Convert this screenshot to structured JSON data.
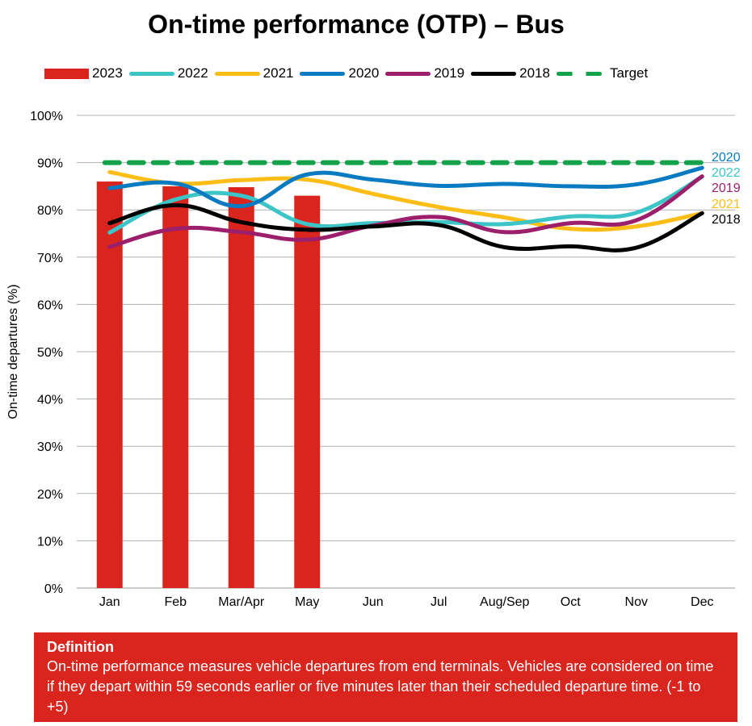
{
  "chart_data": {
    "type": "bar+line",
    "title": "On-time performance (OTP) – Bus",
    "xlabel": "",
    "ylabel": "On-time departures (%)",
    "ylim": [
      0,
      100
    ],
    "yticks": [
      "0%",
      "10%",
      "20%",
      "30%",
      "40%",
      "50%",
      "60%",
      "70%",
      "80%",
      "90%",
      "100%"
    ],
    "grid": true,
    "legend_position": "top",
    "categories": [
      "Jan",
      "Feb",
      "Mar/Apr",
      "May",
      "Jun",
      "Jul",
      "Aug/Sep",
      "Oct",
      "Nov",
      "Dec"
    ],
    "bars": {
      "name": "2023",
      "color": "#d9251d",
      "values": [
        86,
        85,
        84.8,
        83,
        null,
        null,
        null,
        null,
        null,
        null
      ]
    },
    "series": [
      {
        "name": "2022",
        "color": "#3cc4c6",
        "values": [
          75.2,
          82.2,
          83.0,
          77.0,
          77.2,
          77.4,
          77.0,
          78.6,
          79.4,
          87.0
        ],
        "end_label": "2022"
      },
      {
        "name": "2021",
        "color": "#fbbd16",
        "values": [
          88.0,
          85.6,
          86.3,
          86.4,
          83.4,
          80.6,
          78.4,
          76.0,
          76.5,
          79.3
        ],
        "end_label": "2021"
      },
      {
        "name": "2020",
        "color": "#0b7bc1",
        "values": [
          84.6,
          85.6,
          80.8,
          87.5,
          86.4,
          85.1,
          85.5,
          85.0,
          85.4,
          88.9
        ],
        "end_label": "2020"
      },
      {
        "name": "2019",
        "color": "#9c1f6c",
        "values": [
          72.2,
          76.0,
          75.3,
          73.7,
          76.7,
          78.5,
          75.3,
          77.2,
          77.8,
          87.1
        ],
        "end_label": "2019"
      },
      {
        "name": "2018",
        "color": "#000000",
        "values": [
          77.2,
          81.0,
          77.4,
          75.8,
          76.5,
          76.8,
          72.1,
          72.3,
          72.0,
          79.3
        ],
        "end_label": "2018"
      }
    ],
    "target": {
      "name": "Target",
      "color": "#12a24a",
      "value": 90
    }
  },
  "legend": [
    {
      "label": "2023",
      "kind": "bar",
      "color": "#d9251d"
    },
    {
      "label": "2022",
      "kind": "line",
      "color": "#3cc4c6"
    },
    {
      "label": "2021",
      "kind": "line",
      "color": "#fbbd16"
    },
    {
      "label": "2020",
      "kind": "line",
      "color": "#0b7bc1"
    },
    {
      "label": "2019",
      "kind": "line",
      "color": "#9c1f6c"
    },
    {
      "label": "2018",
      "kind": "line",
      "color": "#000000"
    },
    {
      "label": "Target",
      "kind": "dash",
      "color": "#12a24a"
    }
  ],
  "definition": {
    "title": "Definition",
    "text": "On-time performance measures vehicle departures from end terminals. Vehicles are considered on time if they depart within 59 seconds earlier or five minutes later than their scheduled departure time. (-1 to +5)",
    "background": "#d9251d"
  }
}
